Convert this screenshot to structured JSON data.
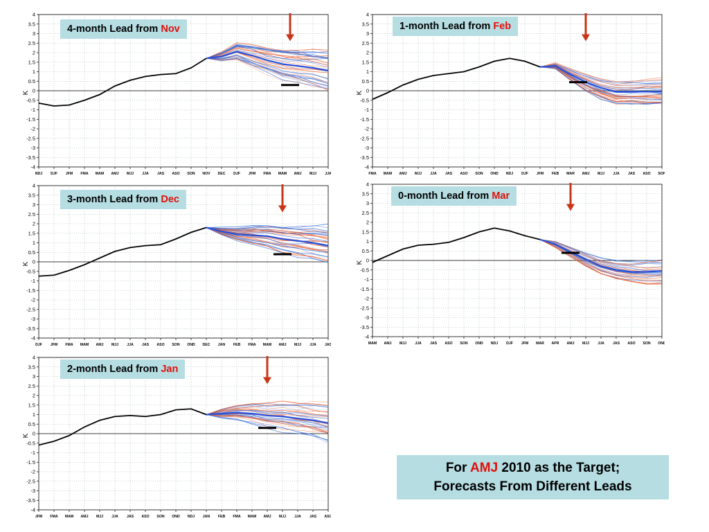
{
  "target": {
    "line1_pre": "For ",
    "line1_red": "AMJ",
    "line1_post": " 2010 as the Target;",
    "line2": "Forecasts From Different Leads"
  },
  "colors": {
    "obs": "#000000",
    "member_red": "#e85a2a",
    "member_blue": "#3a6fd8",
    "mean_blue": "#2a50d8",
    "target_bar": "#000000",
    "arrow": "#c8361a",
    "label_red": "#e0100c",
    "box": "#b5dde2"
  },
  "chart_data": [
    {
      "type": "line",
      "title_pre": "4-month Lead from ",
      "title_red": "Nov",
      "ylabel": "K",
      "ylim": [
        -4,
        4
      ],
      "y_step": 0.5,
      "categories": [
        "NDJ",
        "DJF",
        "JFM",
        "FMA",
        "MAM",
        "AMJ",
        "MJJ",
        "JJA",
        "JAS",
        "ASO",
        "SON",
        "NOV",
        "DEC",
        "DJF",
        "JFM",
        "FMA",
        "MAM",
        "AMJ",
        "MJJ",
        "JJA"
      ],
      "observed": [
        -0.65,
        -0.8,
        -0.75,
        -0.5,
        -0.2,
        0.25,
        0.55,
        0.75,
        0.85,
        0.9,
        1.2,
        1.7
      ],
      "forecast_start_index": 11,
      "ensemble_mean": [
        1.7,
        1.8,
        2.05,
        1.85,
        1.6,
        1.4,
        1.3,
        1.2,
        1.05
      ],
      "ensemble_spread": [
        0,
        0.25,
        0.45,
        0.6,
        0.7,
        0.8,
        0.9,
        1.0,
        1.1
      ],
      "ensemble_members": 36,
      "target_index": 16.5,
      "target_value": 0.3,
      "arrow_index": 16.5
    },
    {
      "type": "line",
      "title_pre": "1-month Lead from ",
      "title_red": "Feb",
      "ylabel": "K",
      "ylim": [
        -4,
        4
      ],
      "y_step": 0.5,
      "categories": [
        "FMA",
        "MAM",
        "AMJ",
        "MJJ",
        "JJA",
        "JAS",
        "ASO",
        "SON",
        "OND",
        "NDJ",
        "DJF",
        "JFM",
        "FEB",
        "MAR",
        "AMJ",
        "MJJ",
        "JJA",
        "JAS",
        "ASO",
        "SON"
      ],
      "observed": [
        -0.45,
        -0.1,
        0.3,
        0.6,
        0.8,
        0.9,
        1.0,
        1.25,
        1.55,
        1.7,
        1.55,
        1.25
      ],
      "forecast_start_index": 11,
      "ensemble_mean": [
        1.25,
        1.3,
        0.85,
        0.45,
        0.15,
        -0.05,
        -0.05,
        -0.05,
        -0.05
      ],
      "ensemble_spread": [
        0,
        0.15,
        0.3,
        0.45,
        0.55,
        0.6,
        0.6,
        0.65,
        0.65
      ],
      "ensemble_members": 36,
      "target_index": 13.5,
      "target_value": 0.45,
      "arrow_index": 14
    },
    {
      "type": "line",
      "title_pre": "3-month Lead from ",
      "title_red": "Dec",
      "ylabel": "K",
      "ylim": [
        -4,
        4
      ],
      "y_step": 0.5,
      "categories": [
        "DJF",
        "JFM",
        "FMA",
        "MAM",
        "AMJ",
        "MJJ",
        "JJA",
        "JAS",
        "ASO",
        "SON",
        "OND",
        "DEC",
        "JAN",
        "FEB",
        "FMA",
        "MAM",
        "AMJ",
        "MJJ",
        "JJA",
        "JAS"
      ],
      "observed": [
        -0.75,
        -0.7,
        -0.45,
        -0.15,
        0.2,
        0.55,
        0.75,
        0.85,
        0.9,
        1.2,
        1.55,
        1.8
      ],
      "forecast_start_index": 11,
      "ensemble_mean": [
        1.8,
        1.6,
        1.45,
        1.4,
        1.35,
        1.2,
        1.1,
        1.0,
        0.85
      ],
      "ensemble_spread": [
        0,
        0.2,
        0.35,
        0.5,
        0.6,
        0.7,
        0.8,
        0.9,
        1.0
      ],
      "ensemble_members": 36,
      "target_index": 16,
      "target_value": 0.4,
      "arrow_index": 16
    },
    {
      "type": "line",
      "title_pre": "0-month Lead from ",
      "title_red": "Mar",
      "ylabel": "K",
      "ylim": [
        -4,
        4
      ],
      "y_step": 0.5,
      "categories": [
        "MAM",
        "AMJ",
        "MJJ",
        "JJA",
        "JAS",
        "ASO",
        "SON",
        "OND",
        "NDJ",
        "DJF",
        "JFM",
        "MAR",
        "APR",
        "AMJ",
        "MJJ",
        "JJA",
        "JAS",
        "ASO",
        "SON",
        "OND"
      ],
      "observed": [
        -0.1,
        0.25,
        0.6,
        0.8,
        0.85,
        0.95,
        1.2,
        1.5,
        1.7,
        1.55,
        1.3,
        1.1
      ],
      "forecast_start_index": 11,
      "ensemble_mean": [
        1.1,
        0.85,
        0.45,
        0.05,
        -0.3,
        -0.5,
        -0.6,
        -0.6,
        -0.55
      ],
      "ensemble_spread": [
        0,
        0.15,
        0.25,
        0.35,
        0.45,
        0.5,
        0.55,
        0.6,
        0.6
      ],
      "ensemble_members": 36,
      "target_index": 13,
      "target_value": 0.4,
      "arrow_index": 13
    },
    {
      "type": "line",
      "title_pre": "2-month Lead from ",
      "title_red": "Jan",
      "ylabel": "K",
      "ylim": [
        -4,
        4
      ],
      "y_step": 0.5,
      "categories": [
        "JFM",
        "FMA",
        "MAM",
        "AMJ",
        "MJJ",
        "JJA",
        "JAS",
        "ASO",
        "SON",
        "OND",
        "NDJ",
        "JAN",
        "FEB",
        "FMA",
        "MAM",
        "AMJ",
        "MJJ",
        "JJA",
        "JAS",
        "ASO"
      ],
      "observed": [
        -0.6,
        -0.4,
        -0.1,
        0.35,
        0.7,
        0.9,
        0.95,
        0.9,
        1.0,
        1.25,
        1.3,
        1.0
      ],
      "forecast_start_index": 11,
      "ensemble_mean": [
        1.0,
        1.05,
        1.1,
        1.05,
        0.95,
        0.9,
        0.8,
        0.7,
        0.55
      ],
      "ensemble_spread": [
        0,
        0.25,
        0.4,
        0.55,
        0.65,
        0.75,
        0.85,
        0.95,
        1.05
      ],
      "ensemble_members": 36,
      "target_index": 15,
      "target_value": 0.3,
      "arrow_index": 15
    }
  ]
}
